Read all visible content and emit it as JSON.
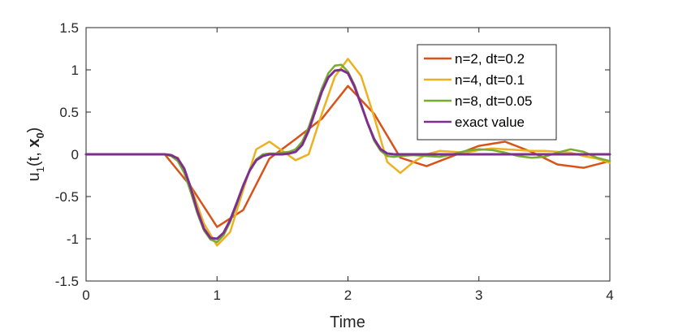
{
  "chart_data": {
    "type": "line",
    "title": "",
    "xlabel": "Time",
    "ylabel": {
      "main": "u",
      "sub1": "1",
      "mid": "(t, ",
      "bold": "x",
      "sub2": "0",
      "end": ")"
    },
    "xlim": [
      0,
      4
    ],
    "ylim": [
      -1.5,
      1.5
    ],
    "xticks": [
      0,
      1,
      2,
      3,
      4
    ],
    "xtick_labels": [
      "0",
      "1",
      "2",
      "3",
      "4"
    ],
    "yticks": [
      -1.5,
      -1,
      -0.5,
      0,
      0.5,
      1,
      1.5
    ],
    "ytick_labels": [
      "-1.5",
      "-1",
      "-0.5",
      "0",
      "0.5",
      "1",
      "1.5"
    ],
    "grid": false,
    "legend_position": "top-right",
    "series": [
      {
        "name": "n=2, dt=0.2",
        "color": "#D95319",
        "x": [
          0,
          0.2,
          0.4,
          0.6,
          0.8,
          1.0,
          1.2,
          1.4,
          1.6,
          1.8,
          2.0,
          2.2,
          2.4,
          2.6,
          2.8,
          3.0,
          3.2,
          3.4,
          3.6,
          3.8,
          4.0
        ],
        "y": [
          0,
          0,
          0,
          0,
          -0.38,
          -0.86,
          -0.66,
          -0.05,
          0.18,
          0.42,
          0.81,
          0.48,
          -0.04,
          -0.14,
          -0.02,
          0.1,
          0.15,
          0.03,
          -0.12,
          -0.16,
          -0.08
        ]
      },
      {
        "name": "n=4, dt=0.1",
        "color": "#EDB120",
        "x": [
          0,
          0.1,
          0.2,
          0.3,
          0.4,
          0.5,
          0.6,
          0.7,
          0.8,
          0.9,
          1.0,
          1.1,
          1.2,
          1.3,
          1.4,
          1.5,
          1.6,
          1.7,
          1.8,
          1.9,
          2.0,
          2.1,
          2.2,
          2.3,
          2.4,
          2.5,
          2.6,
          2.7,
          2.8,
          2.9,
          3.0,
          3.1,
          3.2,
          3.3,
          3.4,
          3.5,
          3.6,
          3.7,
          3.8,
          3.9,
          4.0
        ],
        "y": [
          0,
          0,
          0,
          0,
          0,
          0,
          0,
          -0.04,
          -0.38,
          -0.82,
          -1.08,
          -0.92,
          -0.42,
          0.06,
          0.15,
          0.04,
          -0.07,
          0.0,
          0.48,
          0.92,
          1.13,
          0.93,
          0.44,
          -0.09,
          -0.22,
          -0.09,
          0.0,
          0.04,
          0.03,
          0.02,
          0.05,
          0.07,
          0.06,
          0.05,
          0.04,
          0.04,
          0.03,
          0.02,
          -0.02,
          -0.05,
          -0.1
        ]
      },
      {
        "name": "n=8, dt=0.05",
        "color": "#77AC30",
        "x": [
          0,
          0.6,
          0.65,
          0.7,
          0.75,
          0.8,
          0.85,
          0.9,
          0.95,
          1.0,
          1.05,
          1.1,
          1.15,
          1.2,
          1.25,
          1.3,
          1.35,
          1.4,
          1.45,
          1.5,
          1.55,
          1.6,
          1.65,
          1.7,
          1.75,
          1.8,
          1.85,
          1.9,
          1.95,
          2.0,
          2.05,
          2.1,
          2.15,
          2.2,
          2.25,
          2.3,
          2.35,
          2.4,
          2.5,
          2.6,
          2.7,
          2.8,
          2.9,
          3.0,
          3.1,
          3.2,
          3.3,
          3.4,
          3.5,
          3.6,
          3.7,
          3.8,
          3.9,
          4.0
        ],
        "y": [
          0,
          0,
          -0.02,
          -0.08,
          -0.22,
          -0.45,
          -0.7,
          -0.9,
          -1.01,
          -1.04,
          -0.96,
          -0.8,
          -0.6,
          -0.38,
          -0.18,
          -0.06,
          0.0,
          0.01,
          0.01,
          0.02,
          0.03,
          0.06,
          0.15,
          0.32,
          0.55,
          0.78,
          0.96,
          1.05,
          1.06,
          0.98,
          0.82,
          0.6,
          0.37,
          0.16,
          0.04,
          -0.02,
          -0.03,
          -0.02,
          -0.01,
          -0.02,
          -0.03,
          0.0,
          0.04,
          0.06,
          0.05,
          0.02,
          -0.02,
          -0.04,
          -0.03,
          0.02,
          0.06,
          0.03,
          -0.04,
          -0.08
        ]
      },
      {
        "name": "exact value",
        "color": "#7E2F8E",
        "x": [
          0,
          0.6,
          0.65,
          0.7,
          0.75,
          0.8,
          0.85,
          0.9,
          0.95,
          1.0,
          1.05,
          1.1,
          1.15,
          1.2,
          1.25,
          1.3,
          1.35,
          1.4,
          1.45,
          1.5,
          1.55,
          1.6,
          1.65,
          1.7,
          1.75,
          1.8,
          1.85,
          1.9,
          1.95,
          2.0,
          2.05,
          2.1,
          2.15,
          2.2,
          2.25,
          2.3,
          2.35,
          2.4,
          4.0
        ],
        "y": [
          0,
          0,
          -0.01,
          -0.05,
          -0.17,
          -0.4,
          -0.67,
          -0.88,
          -0.99,
          -1.0,
          -0.93,
          -0.78,
          -0.58,
          -0.37,
          -0.19,
          -0.07,
          -0.02,
          0.0,
          0.0,
          0.0,
          0.01,
          0.03,
          0.11,
          0.28,
          0.51,
          0.74,
          0.91,
          0.99,
          1.0,
          0.96,
          0.8,
          0.59,
          0.37,
          0.18,
          0.06,
          0.01,
          0.0,
          0.0,
          0.0
        ]
      }
    ]
  }
}
